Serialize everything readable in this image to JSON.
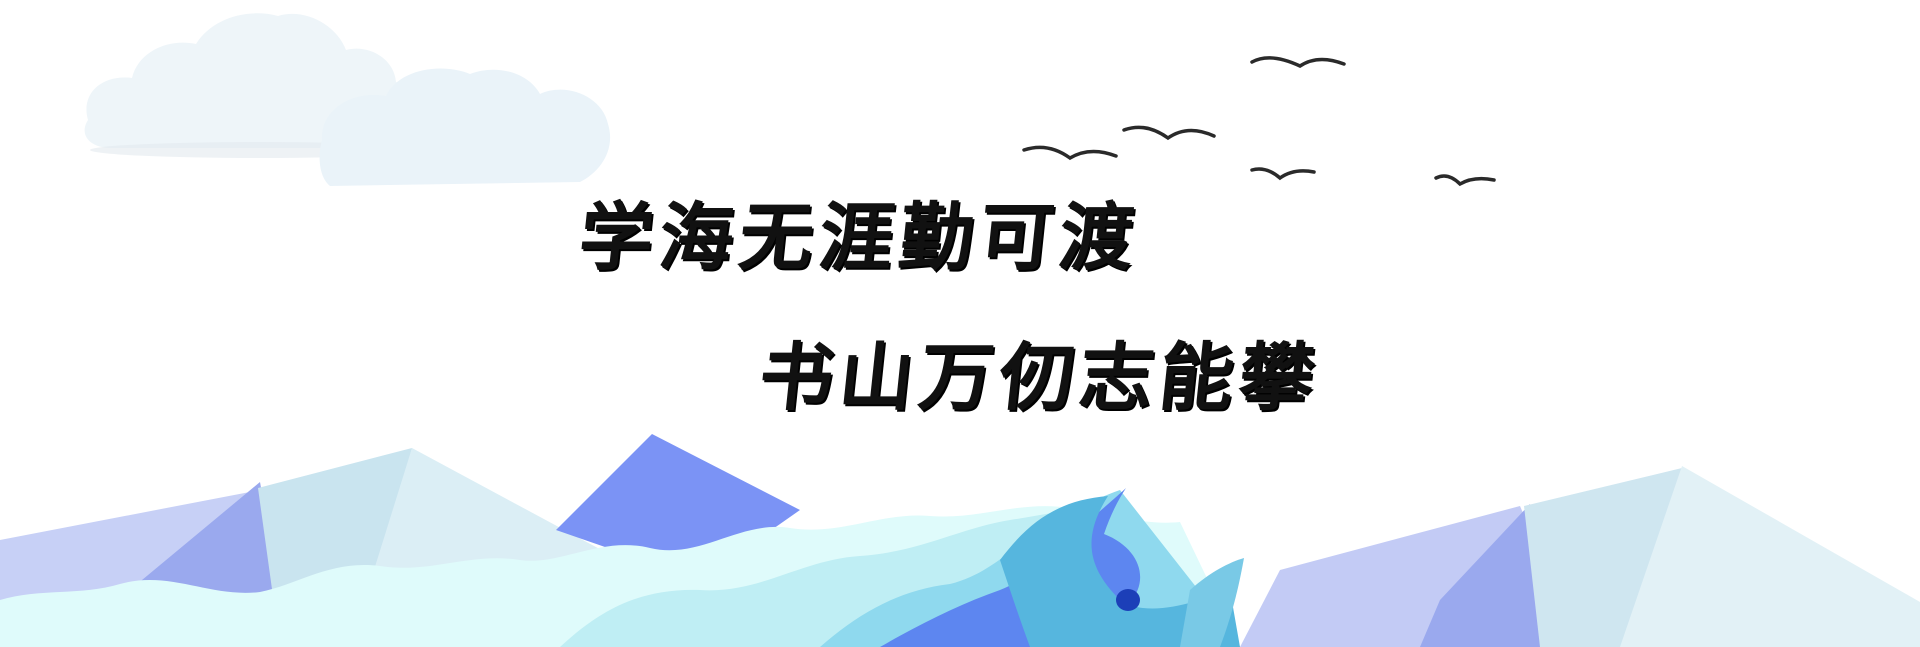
{
  "banner": {
    "slogan_line_1": "学海无涯勤可渡",
    "slogan_line_2": "书山万仞志能攀"
  },
  "decor": {
    "icons": [
      "cloud-icon",
      "bird-icon",
      "mountain-icon",
      "wave-icon"
    ],
    "colors": {
      "sky": "#ffffff",
      "cloud": "#eef5f9",
      "mountain_blue": "#7b93f5",
      "mountain_light": "#c7d0f6",
      "mountain_ice": "#bfe3ef",
      "wave_light": "#dffbfb",
      "wave_mid": "#8fd9ee",
      "wave_deep": "#5d86f0",
      "text": "#111111"
    }
  }
}
